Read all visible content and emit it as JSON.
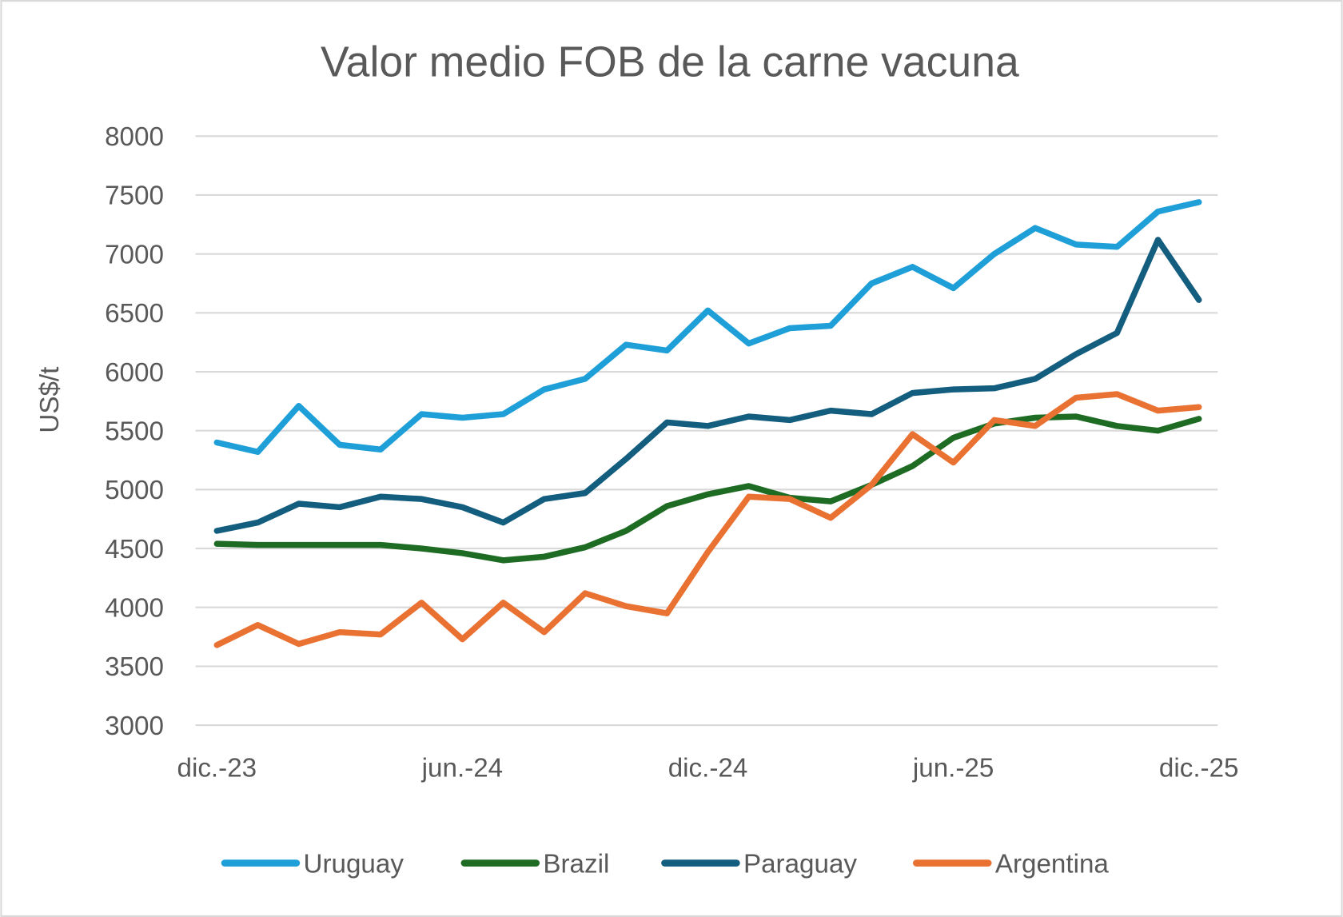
{
  "chart_data": {
    "type": "line",
    "title": "Valor medio FOB de la carne vacuna",
    "xlabel": "",
    "ylabel": "US$/t",
    "ylim": [
      3000,
      8000
    ],
    "yticks": [
      3000,
      3500,
      4000,
      4500,
      5000,
      5500,
      6000,
      6500,
      7000,
      7500,
      8000
    ],
    "x_tick_labels": [
      "dic.-23",
      "jun.-24",
      "dic.-24",
      "jun.-25",
      "dic.-25"
    ],
    "x_tick_every": 6,
    "x_count": 25,
    "grid": true,
    "legend_position": "bottom",
    "series": [
      {
        "name": "Uruguay",
        "color": "#1E9FD8",
        "values": [
          5400,
          5320,
          5710,
          5380,
          5340,
          5640,
          5610,
          5640,
          5850,
          5940,
          6230,
          6180,
          6520,
          6240,
          6370,
          6390,
          6750,
          6890,
          6710,
          7000,
          7220,
          7080,
          7060,
          7360,
          7440
        ]
      },
      {
        "name": "Brazil",
        "color": "#1E6B23",
        "values": [
          4540,
          4530,
          4530,
          4530,
          4530,
          4500,
          4460,
          4400,
          4430,
          4510,
          4650,
          4860,
          4960,
          5030,
          4930,
          4900,
          5040,
          5200,
          5440,
          5560,
          5610,
          5620,
          5540,
          5500,
          5600
        ]
      },
      {
        "name": "Paraguay",
        "color": "#135D7F",
        "values": [
          4650,
          4720,
          4880,
          4850,
          4940,
          4920,
          4850,
          4720,
          4920,
          4970,
          5260,
          5570,
          5540,
          5620,
          5590,
          5670,
          5640,
          5820,
          5850,
          5860,
          5940,
          6150,
          6330,
          7120,
          6610
        ]
      },
      {
        "name": "Argentina",
        "color": "#E97132",
        "values": [
          3680,
          3850,
          3690,
          3790,
          3770,
          4040,
          3730,
          4040,
          3790,
          4120,
          4010,
          3950,
          4470,
          4940,
          4920,
          4760,
          5040,
          5470,
          5230,
          5590,
          5540,
          5780,
          5810,
          5670,
          5700
        ]
      }
    ]
  }
}
